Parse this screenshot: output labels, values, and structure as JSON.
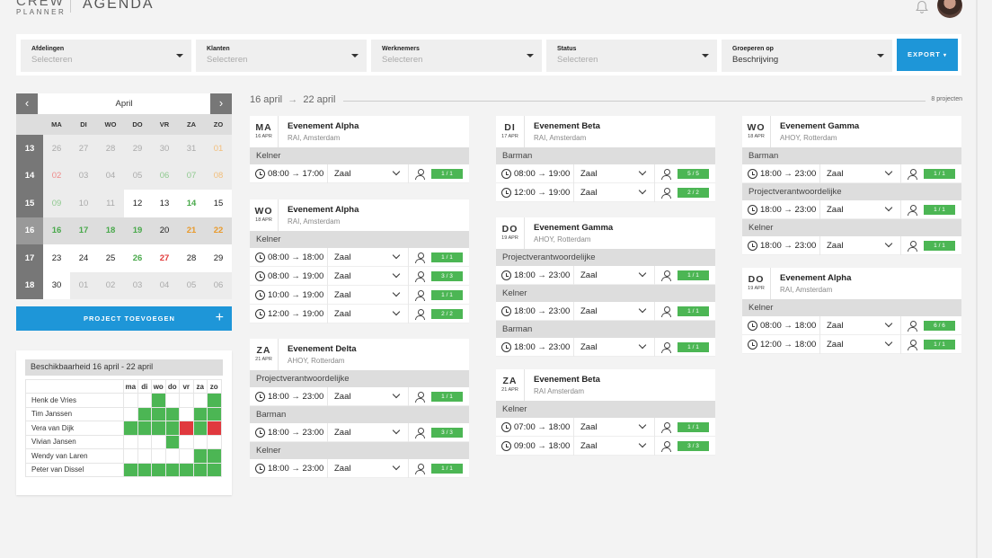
{
  "header": {
    "logo_line1": "CREW",
    "logo_line2": "PLANNER",
    "title": "AGENDA"
  },
  "filters": [
    {
      "label": "Afdelingen",
      "value": "Selecteren",
      "placeholder": true
    },
    {
      "label": "Klanten",
      "value": "Selecteren",
      "placeholder": true
    },
    {
      "label": "Werknemers",
      "value": "Selecteren",
      "placeholder": true
    },
    {
      "label": "Status",
      "value": "Selecteren",
      "placeholder": true
    },
    {
      "label": "Groeperen op",
      "value": "Beschrijving",
      "placeholder": false
    }
  ],
  "export_label": "EXPORT",
  "calendar": {
    "month": "April",
    "weekdays": [
      "MA",
      "DI",
      "WO",
      "DO",
      "VR",
      "ZA",
      "ZO"
    ],
    "weeks": [
      {
        "wk": "13",
        "days": [
          [
            "26",
            "muted"
          ],
          [
            "27",
            "muted"
          ],
          [
            "28",
            "muted"
          ],
          [
            "29",
            "muted"
          ],
          [
            "30",
            "muted"
          ],
          [
            "31",
            "muted"
          ],
          [
            "01",
            "lorange"
          ]
        ]
      },
      {
        "wk": "14",
        "days": [
          [
            "02",
            "lred"
          ],
          [
            "03",
            "muted"
          ],
          [
            "04",
            "muted"
          ],
          [
            "05",
            "muted"
          ],
          [
            "06",
            "lgreen"
          ],
          [
            "07",
            "lgreen"
          ],
          [
            "08",
            "lorange"
          ]
        ]
      },
      {
        "wk": "15",
        "days": [
          [
            "09",
            "lgreen"
          ],
          [
            "10",
            "muted"
          ],
          [
            "11",
            "muted"
          ],
          [
            "12",
            "cur"
          ],
          [
            "13",
            "cur"
          ],
          [
            "14",
            "green"
          ],
          [
            "15",
            "cur"
          ]
        ]
      },
      {
        "wk": "16",
        "days": [
          [
            "16",
            "sel-green"
          ],
          [
            "17",
            "sel-green"
          ],
          [
            "18",
            "sel-green"
          ],
          [
            "19",
            "sel-green"
          ],
          [
            "20",
            "sel"
          ],
          [
            "21",
            "sel-orange"
          ],
          [
            "22",
            "sel-orange"
          ]
        ]
      },
      {
        "wk": "17",
        "days": [
          [
            "23",
            "cur"
          ],
          [
            "24",
            "cur"
          ],
          [
            "25",
            "cur"
          ],
          [
            "26",
            "green"
          ],
          [
            "27",
            "red"
          ],
          [
            "28",
            "cur"
          ],
          [
            "29",
            "cur"
          ]
        ]
      },
      {
        "wk": "18",
        "days": [
          [
            "30",
            "cur"
          ],
          [
            "01",
            "muted"
          ],
          [
            "02",
            "muted"
          ],
          [
            "03",
            "muted"
          ],
          [
            "04",
            "muted"
          ],
          [
            "05",
            "muted"
          ],
          [
            "06",
            "muted"
          ]
        ]
      }
    ]
  },
  "add_project_label": "PROJECT TOEVOEGEN",
  "availability": {
    "title": "Beschikbaarheid 16 april - 22 april",
    "days": [
      "ma",
      "di",
      "wo",
      "do",
      "vr",
      "za",
      "zo"
    ],
    "people": [
      {
        "name": "Henk de Vries",
        "cells": [
          "",
          "",
          "g",
          "",
          "",
          "",
          "g"
        ]
      },
      {
        "name": "Tim Janssen",
        "cells": [
          "",
          "g",
          "g",
          "g",
          "",
          "g",
          "g"
        ]
      },
      {
        "name": "Vera van Dijk",
        "cells": [
          "g",
          "g",
          "g",
          "g",
          "r",
          "g",
          "r"
        ]
      },
      {
        "name": "Vivian Jansen",
        "cells": [
          "",
          "",
          "",
          "g",
          "",
          "",
          ""
        ]
      },
      {
        "name": "Wendy van Laren",
        "cells": [
          "",
          "",
          "",
          "",
          "",
          "g",
          "g"
        ]
      },
      {
        "name": "Peter van Dissel",
        "cells": [
          "g",
          "g",
          "g",
          "g",
          "g",
          "g",
          "g"
        ]
      }
    ]
  },
  "range": {
    "from": "16 april",
    "arrow": "→",
    "to": "22 april",
    "count": "8 projecten"
  },
  "events": [
    {
      "day": "MA",
      "date": "16 APR",
      "title": "Evenement Alpha",
      "location": "RAI, Amsterdam",
      "groups": [
        {
          "role": "Kelner",
          "shifts": [
            {
              "time": "08:00 → 17:00",
              "loc": "Zaal",
              "count": "1 / 1"
            }
          ]
        }
      ]
    },
    {
      "day": "WO",
      "date": "18 APR",
      "title": "Evenement Alpha",
      "location": "RAI, Amsterdam",
      "groups": [
        {
          "role": "Kelner",
          "shifts": [
            {
              "time": "08:00 → 18:00",
              "loc": "Zaal",
              "count": "1 / 1"
            },
            {
              "time": "08:00 → 19:00",
              "loc": "Zaal",
              "count": "3 / 3"
            },
            {
              "time": "10:00 → 19:00",
              "loc": "Zaal",
              "count": "1 / 1"
            },
            {
              "time": "12:00 → 19:00",
              "loc": "Zaal",
              "count": "2 / 2"
            }
          ]
        }
      ]
    },
    {
      "day": "ZA",
      "date": "21 APR",
      "title": "Evenement Delta",
      "location": "AHOY, Rotterdam",
      "groups": [
        {
          "role": "Projectverantwoordelijke",
          "shifts": [
            {
              "time": "18:00 → 23:00",
              "loc": "Zaal",
              "count": "1 / 1"
            }
          ]
        },
        {
          "role": "Barman",
          "shifts": [
            {
              "time": "18:00 → 23:00",
              "loc": "Zaal",
              "count": "3 / 3"
            }
          ]
        },
        {
          "role": "Kelner",
          "shifts": [
            {
              "time": "18:00 → 23:00",
              "loc": "Zaal",
              "count": "1 / 1"
            }
          ]
        }
      ]
    },
    {
      "day": "DI",
      "date": "17 APR",
      "title": "Evenement Beta",
      "location": "RAI, Amsterdam",
      "groups": [
        {
          "role": "Barman",
          "shifts": [
            {
              "time": "08:00 → 19:00",
              "loc": "Zaal",
              "count": "5 / 5"
            },
            {
              "time": "12:00 → 19:00",
              "loc": "Zaal",
              "count": "2 / 2"
            }
          ]
        }
      ]
    },
    {
      "day": "DO",
      "date": "19 APR",
      "title": "Evenement Gamma",
      "location": "AHOY, Rotterdam",
      "groups": [
        {
          "role": "Projectverantwoordelijke",
          "shifts": [
            {
              "time": "18:00 → 23:00",
              "loc": "Zaal",
              "count": "1 / 1"
            }
          ]
        },
        {
          "role": "Kelner",
          "shifts": [
            {
              "time": "18:00 → 23:00",
              "loc": "Zaal",
              "count": "1 / 1"
            }
          ]
        },
        {
          "role": "Barman",
          "shifts": [
            {
              "time": "18:00 → 23:00",
              "loc": "Zaal",
              "count": "1 / 1"
            }
          ]
        }
      ]
    },
    {
      "day": "ZA",
      "date": "21 APR",
      "title": "Evenement Beta",
      "location": "RAI Amsterdam",
      "groups": [
        {
          "role": "Kelner",
          "shifts": [
            {
              "time": "07:00 → 18:00",
              "loc": "Zaal",
              "count": "1 / 1"
            },
            {
              "time": "09:00 → 18:00",
              "loc": "Zaal",
              "count": "3 / 3"
            }
          ]
        }
      ]
    },
    {
      "day": "WO",
      "date": "18 APR",
      "title": "Evenement Gamma",
      "location": "AHOY, Rotterdam",
      "groups": [
        {
          "role": "Barman",
          "shifts": [
            {
              "time": "18:00 → 23:00",
              "loc": "Zaal",
              "count": "1 / 1"
            }
          ]
        },
        {
          "role": "Projectverantwoordelijke",
          "shifts": [
            {
              "time": "18:00 → 23:00",
              "loc": "Zaal",
              "count": "1 / 1"
            }
          ]
        },
        {
          "role": "Kelner",
          "shifts": [
            {
              "time": "18:00 → 23:00",
              "loc": "Zaal",
              "count": "1 / 1"
            }
          ]
        }
      ]
    },
    {
      "day": "DO",
      "date": "19 APR",
      "title": "Evenement Alpha",
      "location": "RAI, Amsterdam",
      "groups": [
        {
          "role": "Kelner",
          "shifts": [
            {
              "time": "08:00 → 18:00",
              "loc": "Zaal",
              "count": "6 / 6"
            },
            {
              "time": "12:00 → 18:00",
              "loc": "Zaal",
              "count": "1 / 1"
            }
          ]
        }
      ]
    }
  ]
}
